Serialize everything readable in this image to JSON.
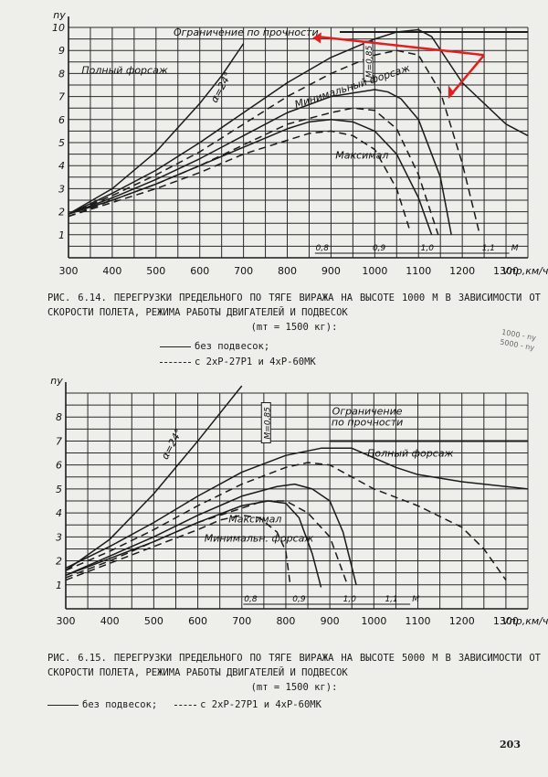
{
  "chart_data": [
    {
      "type": "line",
      "xlabel": "Vпр,км/ч",
      "ylabel": "ny",
      "xlim": [
        300,
        1350
      ],
      "ylim": [
        0,
        10
      ],
      "x_ticks": [
        300,
        400,
        500,
        600,
        700,
        800,
        900,
        1000,
        1100,
        1200,
        1300
      ],
      "y_ticks": [
        1,
        2,
        3,
        4,
        5,
        6,
        7,
        8,
        9,
        10
      ],
      "grid": true,
      "limit_line": {
        "label": "Ограничение по прочности",
        "y": 9.8
      },
      "mach_labels": [
        {
          "text": "0,8",
          "x": 880
        },
        {
          "text": "0,9",
          "x": 1010
        },
        {
          "text": "1,0",
          "x": 1120
        },
        {
          "text": "1,1",
          "x": 1260
        },
        {
          "text": "М",
          "x": 1320
        }
      ],
      "mach_line": {
        "text": "М=0,85",
        "x": 985,
        "y_top": 9.4
      },
      "annotations": [
        {
          "text": "Полный форсаж",
          "x": 330,
          "y": 8.0
        },
        {
          "text": "Минимальный форсаж",
          "x": 820,
          "y": 6.5
        },
        {
          "text": "Максимал",
          "x": 910,
          "y": 4.3
        },
        {
          "text": "α=24°",
          "x": 638,
          "y": 6.7
        }
      ],
      "series": [
        {
          "name": "α=24°",
          "style": "solid",
          "x": [
            300,
            400,
            500,
            600,
            650,
            700
          ],
          "y": [
            1.9,
            3.0,
            4.6,
            6.7,
            7.9,
            9.3
          ]
        },
        {
          "name": "Полный форсаж",
          "style": "solid",
          "x": [
            300,
            400,
            500,
            600,
            700,
            800,
            900,
            1000,
            1050,
            1100,
            1130,
            1200,
            1300,
            1350
          ],
          "y": [
            1.9,
            2.8,
            3.8,
            5.0,
            6.3,
            7.6,
            8.7,
            9.5,
            9.8,
            9.9,
            9.6,
            7.6,
            5.8,
            5.3
          ]
        },
        {
          "name": "Полный форсаж с подвесками",
          "style": "dashed",
          "x": [
            300,
            400,
            500,
            600,
            700,
            800,
            900,
            1000,
            1050,
            1100,
            1150,
            1200,
            1240
          ],
          "y": [
            1.9,
            2.7,
            3.6,
            4.6,
            5.8,
            7.0,
            8.0,
            8.8,
            9.0,
            8.8,
            7.2,
            4.1,
            1.0
          ]
        },
        {
          "name": "Минимальный форсаж",
          "style": "solid",
          "x": [
            300,
            400,
            500,
            600,
            700,
            800,
            900,
            1000,
            1030,
            1060,
            1100,
            1150,
            1175
          ],
          "y": [
            1.9,
            2.6,
            3.4,
            4.3,
            5.3,
            6.3,
            7.0,
            7.3,
            7.2,
            6.9,
            6.0,
            3.5,
            1.0
          ]
        },
        {
          "name": "Минимальный форсаж с подвесками",
          "style": "dashed",
          "x": [
            300,
            400,
            500,
            600,
            700,
            800,
            900,
            950,
            1000,
            1050,
            1100,
            1145
          ],
          "y": [
            1.8,
            2.5,
            3.2,
            4.0,
            4.9,
            5.8,
            6.3,
            6.5,
            6.4,
            5.6,
            3.6,
            1.0
          ]
        },
        {
          "name": "Максимал",
          "style": "solid",
          "x": [
            300,
            400,
            500,
            600,
            700,
            800,
            850,
            900,
            950,
            1000,
            1050,
            1100,
            1130
          ],
          "y": [
            1.9,
            2.5,
            3.2,
            4.0,
            4.8,
            5.6,
            5.9,
            6.0,
            5.9,
            5.5,
            4.5,
            2.6,
            1.0
          ]
        },
        {
          "name": "Максимал с подвесками",
          "style": "dashed",
          "x": [
            300,
            400,
            500,
            600,
            700,
            800,
            850,
            900,
            950,
            1000,
            1050,
            1080
          ],
          "y": [
            1.8,
            2.4,
            3.0,
            3.7,
            4.5,
            5.1,
            5.4,
            5.5,
            5.3,
            4.7,
            3.0,
            1.2
          ]
        }
      ],
      "caption": "РИС. 6.14. ПЕРЕГРУЗКИ ПРЕДЕЛЬНОГО ПО ТЯГЕ ВИРАЖА НА ВЫСОТЕ 1000 М В ЗАВИСИМОСТИ ОТ СКОРОСТИ ПОЛЕТА, РЕЖИМА РАБОТЫ ДВИГАТЕЛЕЙ И ПОДВЕСОК",
      "caption_mass": "(mт = 1500 кг):",
      "legend_solid": "без подвесок;",
      "legend_dashed": "с 2хР-27Р1 и 4хР-60МК"
    },
    {
      "type": "line",
      "xlabel": "Vпр,км/ч",
      "ylabel": "ny",
      "xlim": [
        300,
        1350
      ],
      "ylim": [
        0,
        9
      ],
      "x_ticks": [
        300,
        400,
        500,
        600,
        700,
        800,
        900,
        1000,
        1100,
        1200,
        1300
      ],
      "y_ticks": [
        1,
        2,
        3,
        4,
        5,
        6,
        7,
        8
      ],
      "grid": true,
      "limit_line": {
        "label": "Ограничение по прочности",
        "y": 7.0
      },
      "mach_labels": [
        {
          "text": "0,8",
          "x": 720
        },
        {
          "text": "0,9",
          "x": 830
        },
        {
          "text": "1,0",
          "x": 945
        },
        {
          "text": "1,1",
          "x": 1040
        },
        {
          "text": "М",
          "x": 1095
        }
      ],
      "mach_line": {
        "text": "М=0,85",
        "x": 755,
        "y_top": 8.6
      },
      "annotations": [
        {
          "text": "Полный форсаж",
          "x": 985,
          "y": 6.35
        },
        {
          "text": "Максимал",
          "x": 670,
          "y": 3.6
        },
        {
          "text": "Минимальн. форсаж",
          "x": 615,
          "y": 2.8
        },
        {
          "text": "α=24°",
          "x": 530,
          "y": 6.2
        }
      ],
      "series": [
        {
          "name": "α=24°",
          "style": "solid",
          "x": [
            300,
            400,
            500,
            600,
            700
          ],
          "y": [
            1.6,
            2.9,
            4.8,
            7.0,
            9.3
          ]
        },
        {
          "name": "Полный форсаж",
          "style": "solid",
          "x": [
            300,
            400,
            500,
            600,
            700,
            800,
            880,
            950,
            1000,
            1050,
            1100,
            1200,
            1300,
            1350
          ],
          "y": [
            1.7,
            2.6,
            3.6,
            4.7,
            5.7,
            6.4,
            6.7,
            6.7,
            6.3,
            5.9,
            5.6,
            5.3,
            5.1,
            5.0
          ]
        },
        {
          "name": "Полный форсаж с подвесками",
          "style": "dashed",
          "x": [
            300,
            400,
            500,
            600,
            700,
            800,
            850,
            900,
            950,
            1000,
            1100,
            1200,
            1250,
            1300
          ],
          "y": [
            1.6,
            2.4,
            3.3,
            4.3,
            5.2,
            5.9,
            6.1,
            6.0,
            5.5,
            5.0,
            4.3,
            3.4,
            2.5,
            1.2
          ]
        },
        {
          "name": "Минимальный форсаж",
          "style": "solid",
          "x": [
            300,
            400,
            500,
            600,
            700,
            780,
            820,
            860,
            900,
            930,
            960
          ],
          "y": [
            1.4,
            2.2,
            3.0,
            3.9,
            4.7,
            5.1,
            5.2,
            5.0,
            4.5,
            3.2,
            1.0
          ]
        },
        {
          "name": "Минимальный форсаж с подвесками",
          "style": "dashed",
          "x": [
            300,
            400,
            500,
            600,
            700,
            750,
            800,
            850,
            900,
            940
          ],
          "y": [
            1.3,
            2.0,
            2.8,
            3.6,
            4.2,
            4.5,
            4.5,
            4.0,
            3.0,
            1.0
          ]
        },
        {
          "name": "Максимал",
          "style": "solid",
          "x": [
            300,
            400,
            500,
            600,
            700,
            760,
            800,
            830,
            860,
            880
          ],
          "y": [
            1.4,
            2.1,
            2.8,
            3.6,
            4.3,
            4.5,
            4.4,
            3.8,
            2.3,
            0.9
          ]
        },
        {
          "name": "Максимал с подвесками",
          "style": "dashed",
          "x": [
            300,
            400,
            500,
            600,
            650,
            700,
            740,
            780,
            800,
            810
          ],
          "y": [
            1.2,
            1.9,
            2.6,
            3.3,
            3.7,
            3.9,
            3.8,
            3.2,
            2.4,
            1.0
          ]
        }
      ],
      "caption": "РИС. 6.15. ПЕРЕГРУЗКИ ПРЕДЕЛЬНОГО ПО ТЯГЕ ВИРАЖА НА ВЫСОТЕ 5000 М В ЗАВИСИМОСТИ ОТ СКОРОСТИ ПОЛЕТА, РЕЖИМА РАБОТЫ ДВИГАТЕЛЕЙ И ПОДВЕСОК",
      "caption_mass": "(mт = 1500 кг):",
      "legend_solid": "без подвесок;",
      "legend_dashed": "с 2хР-27Р1 и 4хР-60МК"
    }
  ],
  "page": {
    "number": "203",
    "margin_note": "1000 - nу 5000 - nу"
  },
  "overlay": {
    "arrow_color": "#e02020"
  },
  "colors": {
    "ink": "#1b1b1b",
    "paper": "#eeeeea"
  }
}
